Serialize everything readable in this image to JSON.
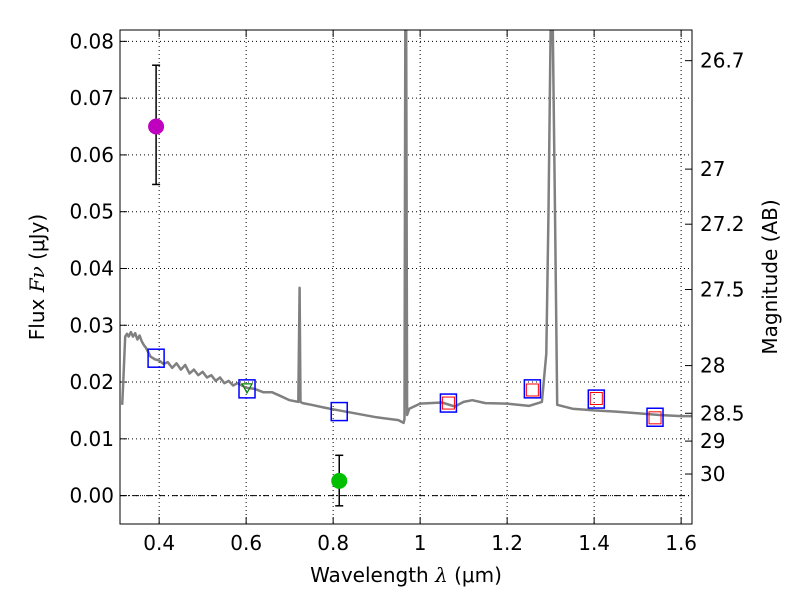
{
  "chart_data": {
    "type": "scatter",
    "xlabel": "Wavelength",
    "xlabel_symbol": "λ",
    "xlabel_unit": "(μm)",
    "ylabel": "Flux",
    "ylabel_symbol": "Fν",
    "ylabel_unit": "(μJy)",
    "y2label": "Magnitude (AB)",
    "xlim": [
      0.31,
      1.625
    ],
    "ylim": [
      -0.005,
      0.082
    ],
    "grid": true,
    "xticks": [
      0.4,
      0.6,
      0.8,
      1.0,
      1.2,
      1.4,
      1.6
    ],
    "xtick_labels": [
      "0.4",
      "0.6",
      "0.8",
      "1",
      "1.2",
      "1.4",
      "1.6"
    ],
    "yticks": [
      0.0,
      0.01,
      0.02,
      0.03,
      0.04,
      0.05,
      0.06,
      0.07,
      0.08
    ],
    "ytick_labels": [
      "0.00",
      "0.01",
      "0.02",
      "0.03",
      "0.04",
      "0.05",
      "0.06",
      "0.07",
      "0.08"
    ],
    "magnitude_ticks": [
      {
        "flux": 0.0766,
        "label": "26.7"
      },
      {
        "flux": 0.0575,
        "label": "27"
      },
      {
        "flux": 0.0478,
        "label": "27.2"
      },
      {
        "flux": 0.0363,
        "label": "27.5"
      },
      {
        "flux": 0.0229,
        "label": "28"
      },
      {
        "flux": 0.0145,
        "label": "28.5"
      },
      {
        "flux": 0.0096,
        "label": "29"
      },
      {
        "flux": 0.0038,
        "label": "30"
      }
    ],
    "colors": {
      "model": "#808080",
      "observed_box": "#0000ff",
      "model_box": "#ff0000",
      "magenta_point": "#bf00bf",
      "green_point": "#00bf00",
      "green_marker": "#008000",
      "zero_line": "#000000"
    },
    "series": [
      {
        "name": "model_spectrum",
        "type": "line",
        "x": [
          0.315,
          0.318,
          0.322,
          0.326,
          0.33,
          0.335,
          0.34,
          0.345,
          0.35,
          0.355,
          0.36,
          0.365,
          0.37,
          0.38,
          0.39,
          0.4,
          0.41,
          0.42,
          0.43,
          0.44,
          0.45,
          0.46,
          0.47,
          0.48,
          0.49,
          0.5,
          0.51,
          0.52,
          0.53,
          0.54,
          0.55,
          0.56,
          0.57,
          0.58,
          0.6,
          0.62,
          0.64,
          0.66,
          0.68,
          0.7,
          0.72,
          0.723,
          0.724,
          0.725,
          0.727,
          0.73,
          0.75,
          0.78,
          0.8,
          0.85,
          0.9,
          0.95,
          0.962,
          0.964,
          0.966,
          0.968,
          0.97,
          0.975,
          1.0,
          1.05,
          1.08,
          1.1,
          1.12,
          1.15,
          1.2,
          1.25,
          1.28,
          1.29,
          1.295,
          1.3,
          1.305,
          1.31,
          1.315,
          1.35,
          1.4,
          1.45,
          1.5,
          1.55,
          1.6,
          1.625
        ],
        "y": [
          0.016,
          0.021,
          0.028,
          0.0285,
          0.028,
          0.0288,
          0.028,
          0.0286,
          0.0275,
          0.0282,
          0.0272,
          0.0265,
          0.026,
          0.0245,
          0.024,
          0.0238,
          0.0232,
          0.0235,
          0.0225,
          0.0233,
          0.0222,
          0.023,
          0.0215,
          0.0222,
          0.0212,
          0.0218,
          0.0208,
          0.0212,
          0.0202,
          0.0208,
          0.0198,
          0.0202,
          0.0194,
          0.0198,
          0.019,
          0.0188,
          0.0182,
          0.0182,
          0.0175,
          0.0168,
          0.0165,
          0.0366,
          0.025,
          0.0165,
          0.0164,
          0.0163,
          0.016,
          0.0155,
          0.0152,
          0.0145,
          0.0138,
          0.0133,
          0.0128,
          0.0135,
          0.082,
          0.082,
          0.0142,
          0.0153,
          0.0162,
          0.0164,
          0.0157,
          0.0165,
          0.0168,
          0.0163,
          0.0162,
          0.0158,
          0.0165,
          0.025,
          0.05,
          0.082,
          0.082,
          0.05,
          0.016,
          0.0153,
          0.015,
          0.0148,
          0.0145,
          0.0142,
          0.014,
          0.014
        ]
      },
      {
        "name": "observed_photometry_boxes",
        "type": "scatter",
        "marker": "square",
        "x": [
          0.393,
          0.602,
          0.814,
          1.065,
          1.258,
          1.405,
          1.54
        ],
        "y": [
          0.0242,
          0.0188,
          0.0148,
          0.0163,
          0.0188,
          0.017,
          0.0138
        ]
      },
      {
        "name": "model_photometry_boxes",
        "type": "scatter",
        "marker": "square",
        "x": [
          1.065,
          1.258,
          1.405,
          1.54
        ],
        "y": [
          0.0163,
          0.0186,
          0.0171,
          0.0137
        ]
      },
      {
        "name": "green_marker_0.6",
        "type": "scatter",
        "marker": "triangle",
        "x": [
          0.602
        ],
        "y": [
          0.0188
        ]
      },
      {
        "name": "detection_magenta",
        "type": "errorbar",
        "x": [
          0.393
        ],
        "y": [
          0.065
        ],
        "yerr_low": [
          0.0548
        ],
        "yerr_high": [
          0.0758
        ]
      },
      {
        "name": "detection_green",
        "type": "errorbar",
        "x": [
          0.814
        ],
        "y": [
          0.0026
        ],
        "yerr_low": [
          -0.0018
        ],
        "yerr_high": [
          0.0071
        ]
      }
    ]
  }
}
